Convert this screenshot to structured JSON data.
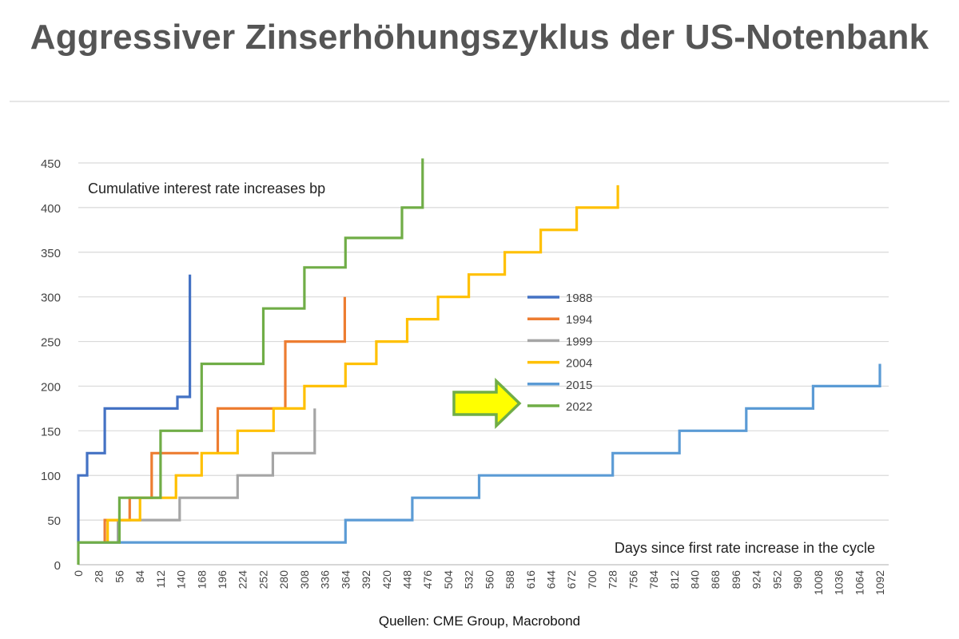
{
  "page": {
    "title": "Aggressiver Zinserhöhungszyklus der US-Notenbank",
    "source": "Quellen: CME Group, Macrobond"
  },
  "chart_data": {
    "type": "line",
    "step": true,
    "ylabel": "Cumulative interest rate increases bp",
    "xlabel": "Days since first rate increase in the cycle",
    "xlim": [
      0,
      1104
    ],
    "ylim": [
      0,
      450
    ],
    "y_ticks": [
      0,
      50,
      100,
      150,
      200,
      250,
      300,
      350,
      400,
      450
    ],
    "x_ticks": [
      0,
      28,
      56,
      84,
      112,
      140,
      168,
      196,
      224,
      252,
      280,
      308,
      336,
      364,
      392,
      420,
      448,
      476,
      504,
      532,
      560,
      588,
      616,
      644,
      672,
      700,
      728,
      756,
      784,
      812,
      840,
      868,
      896,
      924,
      952,
      980,
      1008,
      1036,
      1064,
      1092
    ],
    "grid": "horizontal",
    "legend_position": "center-right",
    "series": [
      {
        "name": "1988",
        "color": "#4472c4",
        "points": [
          [
            0,
            25
          ],
          [
            0,
            100
          ],
          [
            12,
            100
          ],
          [
            12,
            125
          ],
          [
            36,
            125
          ],
          [
            36,
            175
          ],
          [
            135,
            175
          ],
          [
            135,
            188
          ],
          [
            152,
            188
          ],
          [
            152,
            325
          ]
        ]
      },
      {
        "name": "1994",
        "color": "#ed7d31",
        "points": [
          [
            36,
            25
          ],
          [
            36,
            50
          ],
          [
            70,
            50
          ],
          [
            70,
            75
          ],
          [
            100,
            75
          ],
          [
            100,
            125
          ],
          [
            164,
            125
          ]
        ]
      },
      {
        "name": "1994",
        "color": "#ed7d31",
        "points": [
          [
            190,
            125
          ],
          [
            190,
            175
          ],
          [
            282,
            175
          ],
          [
            282,
            250
          ],
          [
            363,
            250
          ],
          [
            363,
            300
          ]
        ]
      },
      {
        "name": "1999",
        "color": "#a5a5a5",
        "points": [
          [
            54,
            25
          ],
          [
            54,
            50
          ],
          [
            138,
            50
          ],
          [
            138,
            75
          ],
          [
            217,
            75
          ],
          [
            217,
            100
          ],
          [
            265,
            100
          ],
          [
            265,
            125
          ],
          [
            322,
            125
          ],
          [
            322,
            175
          ]
        ]
      },
      {
        "name": "2004",
        "color": "#ffc000",
        "points": [
          [
            40,
            25
          ],
          [
            40,
            50
          ],
          [
            84,
            50
          ],
          [
            84,
            75
          ],
          [
            133,
            75
          ],
          [
            133,
            100
          ],
          [
            168,
            100
          ],
          [
            168,
            125
          ],
          [
            217,
            125
          ],
          [
            217,
            150
          ],
          [
            266,
            150
          ],
          [
            266,
            175
          ],
          [
            308,
            175
          ],
          [
            308,
            200
          ],
          [
            364,
            200
          ],
          [
            364,
            225
          ],
          [
            406,
            225
          ],
          [
            406,
            250
          ],
          [
            448,
            250
          ],
          [
            448,
            275
          ],
          [
            490,
            275
          ],
          [
            490,
            300
          ],
          [
            532,
            300
          ],
          [
            532,
            325
          ],
          [
            581,
            325
          ],
          [
            581,
            350
          ],
          [
            630,
            350
          ],
          [
            630,
            375
          ],
          [
            679,
            375
          ],
          [
            679,
            400
          ],
          [
            735,
            400
          ],
          [
            735,
            425
          ]
        ]
      },
      {
        "name": "2015",
        "color": "#5b9bd5",
        "points": [
          [
            0,
            25
          ],
          [
            364,
            25
          ],
          [
            364,
            50
          ],
          [
            455,
            50
          ],
          [
            455,
            75
          ],
          [
            546,
            75
          ],
          [
            546,
            100
          ],
          [
            728,
            100
          ],
          [
            728,
            125
          ],
          [
            819,
            125
          ],
          [
            819,
            150
          ],
          [
            910,
            150
          ],
          [
            910,
            175
          ],
          [
            1001,
            175
          ],
          [
            1001,
            200
          ],
          [
            1092,
            200
          ],
          [
            1092,
            225
          ]
        ]
      },
      {
        "name": "2022",
        "color": "#70ad47",
        "points": [
          [
            0,
            0
          ],
          [
            0,
            25
          ],
          [
            56,
            25
          ],
          [
            56,
            75
          ],
          [
            112,
            75
          ],
          [
            112,
            150
          ],
          [
            168,
            150
          ],
          [
            168,
            225
          ],
          [
            252,
            225
          ],
          [
            252,
            287
          ],
          [
            308,
            287
          ],
          [
            308,
            333
          ],
          [
            364,
            333
          ],
          [
            364,
            366
          ],
          [
            441,
            366
          ],
          [
            441,
            400
          ],
          [
            469,
            400
          ],
          [
            469,
            455
          ]
        ]
      }
    ],
    "legend_entries": [
      {
        "name": "1988",
        "color": "#4472c4"
      },
      {
        "name": "1994",
        "color": "#ed7d31"
      },
      {
        "name": "1999",
        "color": "#a5a5a5"
      },
      {
        "name": "2004",
        "color": "#ffc000"
      },
      {
        "name": "2015",
        "color": "#5b9bd5"
      },
      {
        "name": "2022",
        "color": "#70ad47"
      }
    ],
    "annotation_arrow": {
      "icon": "arrow-right-icon",
      "fill": "#ffff00",
      "stroke": "#70ad47",
      "points_to": "2022"
    }
  }
}
